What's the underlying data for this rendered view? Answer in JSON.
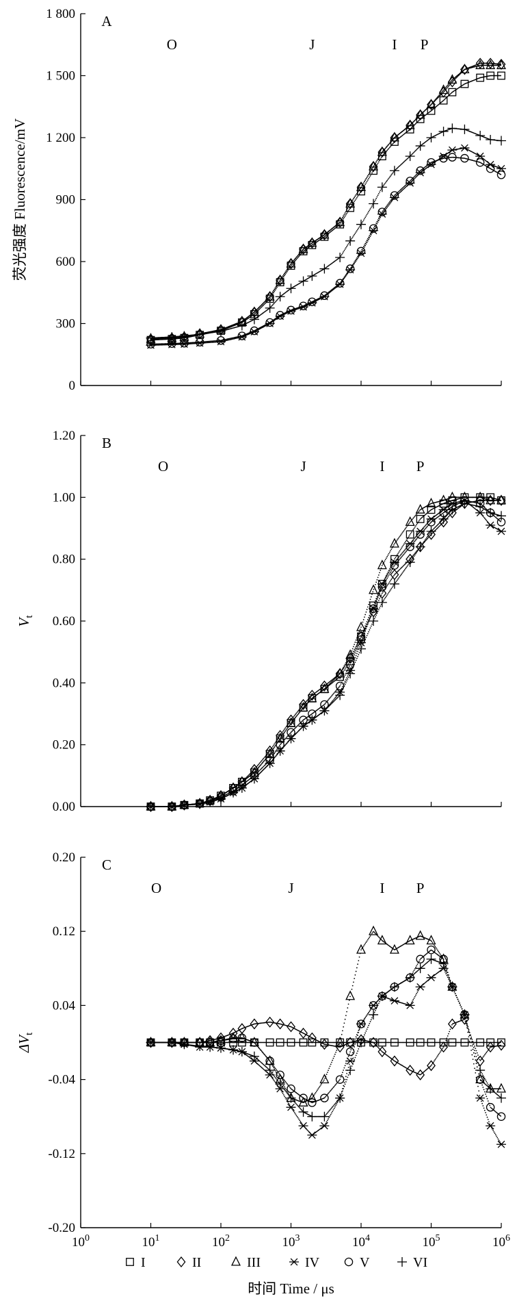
{
  "x_axis": {
    "label": "时间 Time / μs",
    "scale": "log",
    "xlim": [
      1,
      1000000
    ],
    "tick_values": [
      1,
      10,
      100,
      1000,
      10000,
      100000,
      1000000
    ],
    "tick_labels": [
      "10⁰",
      "10¹",
      "10²",
      "10³",
      "10⁴",
      "10⁵",
      "10⁶"
    ]
  },
  "markers": {
    "I": "square",
    "II": "diamond",
    "III": "triangle",
    "IV": "asterisk",
    "V": "circle",
    "VI": "plus"
  },
  "chart_data": [
    {
      "type": "scatter",
      "panel_label": "A",
      "ylabel": "荧光强度 Fluorescence/mV",
      "ylim": [
        0,
        1800
      ],
      "yticks": [
        0,
        300,
        600,
        900,
        1200,
        1500,
        1800
      ],
      "ytick_labels": [
        "0",
        "300",
        "600",
        "900",
        "1 200",
        "1 500",
        "1 800"
      ],
      "phase_labels": [
        {
          "text": "O",
          "x": 20
        },
        {
          "text": "J",
          "x": 2000
        },
        {
          "text": "I",
          "x": 30000
        },
        {
          "text": "P",
          "x": 80000
        }
      ],
      "x": [
        10,
        20,
        30,
        50,
        100,
        200,
        300,
        500,
        700,
        1000,
        1500,
        2000,
        3000,
        5000,
        7000,
        10000,
        15000,
        20000,
        30000,
        50000,
        70000,
        100000,
        150000,
        200000,
        300000,
        500000,
        700000,
        1000000
      ],
      "series": [
        {
          "name": "I",
          "values": [
            220,
            225,
            230,
            245,
            265,
            305,
            345,
            420,
            500,
            580,
            650,
            680,
            720,
            780,
            860,
            940,
            1040,
            1110,
            1180,
            1240,
            1290,
            1330,
            1380,
            1420,
            1460,
            1490,
            1500,
            1500
          ]
        },
        {
          "name": "II",
          "values": [
            225,
            230,
            235,
            250,
            270,
            310,
            355,
            430,
            510,
            590,
            660,
            690,
            730,
            790,
            880,
            960,
            1060,
            1130,
            1200,
            1260,
            1310,
            1360,
            1420,
            1470,
            1530,
            1560,
            1560,
            1555
          ]
        },
        {
          "name": "III",
          "values": [
            225,
            230,
            235,
            250,
            270,
            310,
            355,
            430,
            510,
            590,
            660,
            690,
            730,
            790,
            880,
            960,
            1060,
            1130,
            1200,
            1260,
            1310,
            1360,
            1430,
            1480,
            1530,
            1550,
            1550,
            1550
          ]
        },
        {
          "name": "IV",
          "values": [
            195,
            198,
            200,
            205,
            212,
            235,
            260,
            300,
            335,
            360,
            380,
            400,
            430,
            490,
            560,
            640,
            750,
            830,
            910,
            980,
            1030,
            1070,
            1110,
            1140,
            1150,
            1110,
            1070,
            1050
          ]
        },
        {
          "name": "V",
          "values": [
            200,
            203,
            205,
            210,
            218,
            240,
            265,
            305,
            340,
            365,
            385,
            405,
            435,
            495,
            565,
            650,
            760,
            840,
            920,
            990,
            1040,
            1080,
            1100,
            1105,
            1100,
            1080,
            1050,
            1020
          ]
        },
        {
          "name": "VI",
          "values": [
            230,
            235,
            240,
            248,
            262,
            290,
            320,
            375,
            430,
            470,
            505,
            530,
            565,
            620,
            700,
            780,
            880,
            960,
            1040,
            1110,
            1160,
            1200,
            1230,
            1245,
            1240,
            1210,
            1190,
            1185
          ]
        }
      ]
    },
    {
      "type": "scatter",
      "panel_label": "B",
      "ylabel": "Vt",
      "ylim": [
        0,
        1.2
      ],
      "yticks": [
        0,
        0.2,
        0.4,
        0.6,
        0.8,
        1.0,
        1.2
      ],
      "ytick_labels": [
        "0.00",
        "0.20",
        "0.40",
        "0.60",
        "0.80",
        "1.00",
        "1.20"
      ],
      "phase_labels": [
        {
          "text": "O",
          "x": 15
        },
        {
          "text": "J",
          "x": 1500
        },
        {
          "text": "I",
          "x": 20000
        },
        {
          "text": "P",
          "x": 70000
        }
      ],
      "x": [
        10,
        20,
        30,
        50,
        70,
        100,
        150,
        200,
        300,
        500,
        700,
        1000,
        1500,
        2000,
        3000,
        5000,
        7000,
        10000,
        15000,
        20000,
        30000,
        50000,
        70000,
        100000,
        150000,
        200000,
        300000,
        500000,
        700000,
        1000000
      ],
      "series": [
        {
          "name": "I",
          "values": [
            0.0,
            0.0,
            0.005,
            0.01,
            0.02,
            0.035,
            0.06,
            0.08,
            0.11,
            0.17,
            0.22,
            0.27,
            0.32,
            0.35,
            0.38,
            0.42,
            0.47,
            0.55,
            0.65,
            0.72,
            0.8,
            0.88,
            0.93,
            0.96,
            0.98,
            0.99,
            1.0,
            1.0,
            1.0,
            0.99
          ]
        },
        {
          "name": "II",
          "values": [
            0.0,
            0.0,
            0.005,
            0.01,
            0.02,
            0.035,
            0.06,
            0.08,
            0.12,
            0.18,
            0.23,
            0.28,
            0.33,
            0.36,
            0.39,
            0.43,
            0.48,
            0.55,
            0.63,
            0.69,
            0.75,
            0.8,
            0.84,
            0.88,
            0.92,
            0.95,
            0.98,
            0.99,
            0.99,
            0.99
          ]
        },
        {
          "name": "III",
          "values": [
            0.0,
            0.0,
            0.005,
            0.01,
            0.02,
            0.035,
            0.06,
            0.08,
            0.11,
            0.17,
            0.22,
            0.27,
            0.32,
            0.35,
            0.38,
            0.43,
            0.49,
            0.58,
            0.7,
            0.78,
            0.85,
            0.92,
            0.96,
            0.98,
            0.99,
            1.0,
            1.0,
            1.0,
            0.99,
            0.99
          ]
        },
        {
          "name": "IV",
          "values": [
            0.0,
            0.0,
            0.005,
            0.008,
            0.015,
            0.025,
            0.045,
            0.06,
            0.09,
            0.14,
            0.18,
            0.22,
            0.26,
            0.28,
            0.31,
            0.37,
            0.44,
            0.53,
            0.64,
            0.72,
            0.79,
            0.85,
            0.89,
            0.93,
            0.96,
            0.98,
            0.99,
            0.95,
            0.91,
            0.89
          ]
        },
        {
          "name": "V",
          "values": [
            0.0,
            0.0,
            0.005,
            0.01,
            0.018,
            0.03,
            0.05,
            0.07,
            0.1,
            0.15,
            0.2,
            0.24,
            0.28,
            0.3,
            0.33,
            0.39,
            0.46,
            0.54,
            0.64,
            0.71,
            0.78,
            0.84,
            0.88,
            0.92,
            0.95,
            0.97,
            0.99,
            0.98,
            0.95,
            0.92
          ]
        },
        {
          "name": "VI",
          "values": [
            0.0,
            0.0,
            0.005,
            0.008,
            0.015,
            0.025,
            0.045,
            0.06,
            0.09,
            0.14,
            0.18,
            0.22,
            0.26,
            0.28,
            0.31,
            0.36,
            0.43,
            0.51,
            0.6,
            0.66,
            0.72,
            0.79,
            0.84,
            0.89,
            0.93,
            0.96,
            0.98,
            0.97,
            0.95,
            0.94
          ]
        }
      ]
    },
    {
      "type": "scatter",
      "panel_label": "C",
      "ylabel": "ΔVt",
      "ylim": [
        -0.2,
        0.2
      ],
      "yticks": [
        -0.2,
        -0.12,
        -0.04,
        0.04,
        0.12,
        0.2
      ],
      "ytick_labels": [
        "-0.20",
        "-0.12",
        "-0.04",
        "0.04",
        "0.12",
        "0.20"
      ],
      "phase_labels": [
        {
          "text": "O",
          "x": 12
        },
        {
          "text": "J",
          "x": 1000
        },
        {
          "text": "I",
          "x": 20000
        },
        {
          "text": "P",
          "x": 70000
        }
      ],
      "x": [
        10,
        20,
        30,
        50,
        70,
        100,
        150,
        200,
        300,
        500,
        700,
        1000,
        1500,
        2000,
        3000,
        5000,
        7000,
        10000,
        15000,
        20000,
        30000,
        50000,
        70000,
        100000,
        150000,
        200000,
        300000,
        500000,
        700000,
        1000000
      ],
      "series": [
        {
          "name": "I",
          "values": [
            0,
            0,
            0,
            0,
            0,
            0,
            0,
            0,
            0,
            0,
            0,
            0,
            0,
            0,
            0,
            0,
            0,
            0,
            0,
            0,
            0,
            0,
            0,
            0,
            0,
            0,
            0,
            0,
            0,
            0
          ]
        },
        {
          "name": "II",
          "values": [
            0,
            0,
            0,
            0,
            0.002,
            0.005,
            0.01,
            0.015,
            0.02,
            0.022,
            0.02,
            0.017,
            0.01,
            0.005,
            -0.002,
            -0.005,
            0,
            0.003,
            0.0,
            -0.01,
            -0.02,
            -0.03,
            -0.035,
            -0.025,
            -0.005,
            0.02,
            0.025,
            -0.02,
            -0.005,
            -0.003
          ]
        },
        {
          "name": "III",
          "values": [
            0,
            0,
            0,
            0,
            0,
            0.002,
            0.005,
            0.005,
            0.0,
            -0.02,
            -0.04,
            -0.06,
            -0.065,
            -0.06,
            -0.04,
            0.0,
            0.05,
            0.1,
            0.12,
            0.11,
            0.1,
            0.11,
            0.115,
            0.11,
            0.09,
            0.06,
            0.03,
            -0.04,
            -0.05,
            -0.05
          ]
        },
        {
          "name": "IV",
          "values": [
            0,
            0,
            -0.002,
            -0.005,
            -0.005,
            -0.006,
            -0.008,
            -0.01,
            -0.02,
            -0.035,
            -0.05,
            -0.07,
            -0.09,
            -0.1,
            -0.09,
            -0.06,
            -0.02,
            0.02,
            0.04,
            0.05,
            0.045,
            0.04,
            0.06,
            0.07,
            0.08,
            0.06,
            0.03,
            -0.06,
            -0.09,
            -0.11
          ]
        },
        {
          "name": "V",
          "values": [
            0,
            0,
            0,
            0,
            0,
            0.002,
            0.004,
            0.005,
            0.0,
            -0.02,
            -0.035,
            -0.05,
            -0.06,
            -0.065,
            -0.06,
            -0.04,
            -0.01,
            0.02,
            0.04,
            0.05,
            0.06,
            0.07,
            0.09,
            0.1,
            0.09,
            0.06,
            0.03,
            -0.04,
            -0.07,
            -0.08
          ]
        },
        {
          "name": "VI",
          "values": [
            0,
            0,
            -0.002,
            -0.004,
            -0.005,
            -0.006,
            -0.008,
            -0.01,
            -0.015,
            -0.03,
            -0.045,
            -0.06,
            -0.075,
            -0.08,
            -0.08,
            -0.06,
            -0.03,
            0.0,
            0.03,
            0.05,
            0.06,
            0.07,
            0.08,
            0.09,
            0.085,
            0.06,
            0.03,
            -0.03,
            -0.05,
            -0.06
          ]
        }
      ]
    }
  ],
  "legend": {
    "placement": "bottom",
    "items": [
      {
        "label": "I",
        "marker": "square"
      },
      {
        "label": "II",
        "marker": "diamond"
      },
      {
        "label": "III",
        "marker": "triangle"
      },
      {
        "label": "IV",
        "marker": "asterisk"
      },
      {
        "label": "V",
        "marker": "circle"
      },
      {
        "label": "VI",
        "marker": "plus"
      }
    ]
  }
}
